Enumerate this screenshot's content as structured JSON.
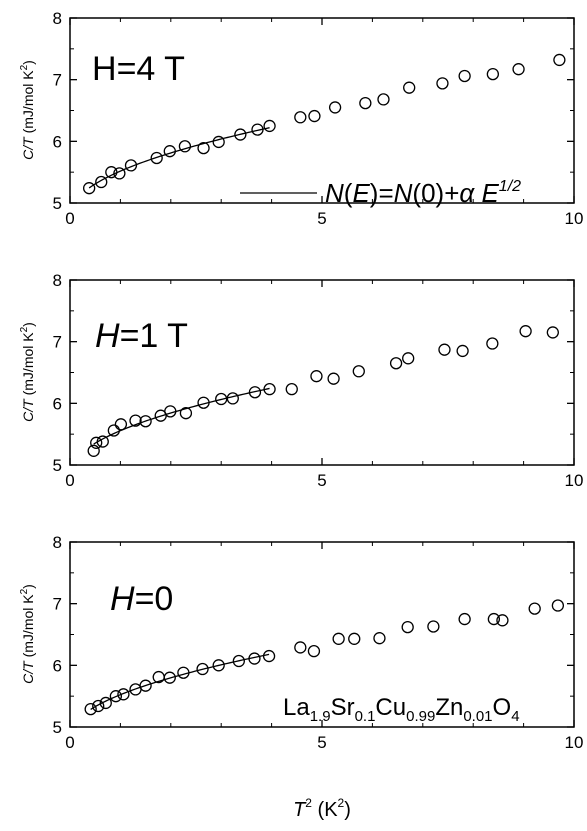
{
  "chart_data": [
    {
      "type": "scatter",
      "panel": "top",
      "annotation": {
        "prefix": "H",
        "value": "=4 T",
        "italic_prefix": false
      },
      "ylabel": {
        "sym": "C/T",
        "unit_pre": " (mJ/mol K",
        "unit_sup": "2",
        "unit_post": ")"
      },
      "xlim": [
        0,
        10
      ],
      "ylim": [
        5,
        8
      ],
      "xticks": [
        0,
        5,
        10
      ],
      "yticks": [
        5,
        6,
        7,
        8
      ],
      "legend": {
        "N1": "N",
        "E1": "E",
        "mid": ")=",
        "N2": "N",
        "zero": "(0)+",
        "alpha": "α",
        "E2": "E",
        "exp": "1/2",
        "open": "(",
        "placement": "bottom-right"
      },
      "points": [
        [
          0.38,
          5.24
        ],
        [
          0.62,
          5.34
        ],
        [
          0.82,
          5.5
        ],
        [
          0.98,
          5.48
        ],
        [
          1.21,
          5.61
        ],
        [
          1.72,
          5.73
        ],
        [
          1.98,
          5.84
        ],
        [
          2.28,
          5.92
        ],
        [
          2.65,
          5.89
        ],
        [
          2.95,
          5.99
        ],
        [
          3.38,
          6.11
        ],
        [
          3.72,
          6.19
        ],
        [
          3.96,
          6.25
        ],
        [
          4.57,
          6.39
        ],
        [
          4.85,
          6.41
        ],
        [
          5.26,
          6.55
        ],
        [
          5.86,
          6.62
        ],
        [
          6.22,
          6.68
        ],
        [
          6.73,
          6.87
        ],
        [
          7.39,
          6.94
        ],
        [
          7.83,
          7.06
        ],
        [
          8.39,
          7.09
        ],
        [
          8.9,
          7.17
        ],
        [
          9.71,
          7.32
        ]
      ],
      "fit": {
        "x_range": [
          0.38,
          3.96
        ]
      }
    },
    {
      "type": "scatter",
      "panel": "middle",
      "annotation": {
        "prefix": "H",
        "value": "=1 T",
        "italic_prefix": true
      },
      "ylabel": {
        "sym": "C/T",
        "unit_pre": " (mJ/mol K",
        "unit_sup": "2",
        "unit_post": ")"
      },
      "xlim": [
        0,
        10
      ],
      "ylim": [
        5,
        8
      ],
      "xticks": [
        0,
        5,
        10
      ],
      "yticks": [
        5,
        6,
        7,
        8
      ],
      "points": [
        [
          0.47,
          5.23
        ],
        [
          0.52,
          5.36
        ],
        [
          0.65,
          5.38
        ],
        [
          0.87,
          5.56
        ],
        [
          1.01,
          5.66
        ],
        [
          1.3,
          5.72
        ],
        [
          1.5,
          5.71
        ],
        [
          1.8,
          5.8
        ],
        [
          1.99,
          5.87
        ],
        [
          2.3,
          5.84
        ],
        [
          2.65,
          6.01
        ],
        [
          3.0,
          6.07
        ],
        [
          3.23,
          6.08
        ],
        [
          3.67,
          6.18
        ],
        [
          3.96,
          6.23
        ],
        [
          4.4,
          6.23
        ],
        [
          4.89,
          6.44
        ],
        [
          5.23,
          6.4
        ],
        [
          5.73,
          6.52
        ],
        [
          6.47,
          6.65
        ],
        [
          6.71,
          6.73
        ],
        [
          7.43,
          6.87
        ],
        [
          7.79,
          6.85
        ],
        [
          8.38,
          6.97
        ],
        [
          9.04,
          7.17
        ],
        [
          9.58,
          7.15
        ]
      ],
      "fit": {
        "x_range": [
          0.47,
          3.96
        ]
      }
    },
    {
      "type": "scatter",
      "panel": "bottom",
      "annotation": {
        "prefix": "H",
        "value": "=0",
        "italic_prefix": true
      },
      "ylabel": {
        "sym": "C/T",
        "unit_pre": " (mJ/mol K",
        "unit_sup": "2",
        "unit_post": ")"
      },
      "xlabel": {
        "sym": "T",
        "sup1": "2",
        "unit_pre": " (K",
        "sup2": "2",
        "unit_post": ")"
      },
      "xlim": [
        0,
        10
      ],
      "ylim": [
        5,
        8
      ],
      "xticks": [
        0,
        5,
        10
      ],
      "yticks": [
        5,
        6,
        7,
        8
      ],
      "compound": {
        "La": "La",
        "s1": "1.9",
        "Sr": "Sr",
        "s2": "0.1",
        "Cu": "Cu",
        "s3": "0.99",
        "Zn": "Zn",
        "s4": "0.01",
        "O": "O",
        "s5": "4"
      },
      "points": [
        [
          0.41,
          5.29
        ],
        [
          0.56,
          5.34
        ],
        [
          0.71,
          5.39
        ],
        [
          0.91,
          5.5
        ],
        [
          1.06,
          5.53
        ],
        [
          1.3,
          5.61
        ],
        [
          1.5,
          5.67
        ],
        [
          1.76,
          5.81
        ],
        [
          1.98,
          5.8
        ],
        [
          2.25,
          5.88
        ],
        [
          2.63,
          5.94
        ],
        [
          2.95,
          6.0
        ],
        [
          3.35,
          6.07
        ],
        [
          3.66,
          6.11
        ],
        [
          3.95,
          6.15
        ],
        [
          4.57,
          6.29
        ],
        [
          4.84,
          6.23
        ],
        [
          5.33,
          6.43
        ],
        [
          5.64,
          6.43
        ],
        [
          6.14,
          6.44
        ],
        [
          6.7,
          6.62
        ],
        [
          7.21,
          6.63
        ],
        [
          7.83,
          6.75
        ],
        [
          8.41,
          6.75
        ],
        [
          8.58,
          6.73
        ],
        [
          9.22,
          6.92
        ],
        [
          9.68,
          6.97
        ]
      ],
      "fit": {
        "x_range": [
          0.41,
          3.95
        ]
      }
    }
  ]
}
